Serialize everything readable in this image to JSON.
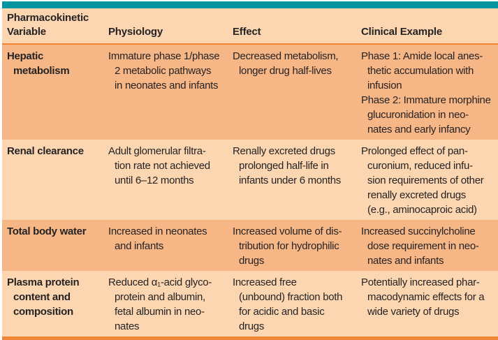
{
  "colors": {
    "teal": "#00949e",
    "row_light": "#fcd6b1",
    "row_dark": "#f6b685",
    "rule_orange": "#f08633",
    "text": "#262324"
  },
  "table": {
    "header": [
      "Pharmacokinetic\nVariable",
      "Physiology",
      "Effect",
      "Clinical Example"
    ],
    "rows": [
      {
        "variable": "Hepatic metabolism",
        "physiology": "Immature phase 1/phase\n2 metabolic pathways\nin neonates and infants",
        "effect": "Decreased metabolism,\nlonger drug half-lives",
        "clinical": [
          "Phase 1: Amide local anes-\nthetic accumulation with\ninfusion",
          "Phase 2: Immature morphine\nglucuronidation in neo-\nnates and early infancy"
        ]
      },
      {
        "variable": "Renal clearance",
        "physiology": "Adult glomerular filtra-\ntion rate not achieved\nuntil 6–12 months",
        "effect": "Renally excreted drugs\nprolonged half-life in\ninfants under 6 months",
        "clinical": [
          "Prolonged effect of pan-\ncuronium, reduced infu-\nsion requirements of other\nrenally excreted drugs\n(e.g., aminocaproic acid)"
        ]
      },
      {
        "variable": "Total body water",
        "physiology": "Increased in neonates\nand infants",
        "effect": "Increased volume of dis-\ntribution for hydrophilic\ndrugs",
        "clinical": [
          "Increased succinylcholine\ndose requirement in neo-\nnates and infants"
        ]
      },
      {
        "variable": "Plasma protein\ncontent and\ncomposition",
        "physiology": "Reduced α₁-acid glyco-\nprotein and albumin,\nfetal albumin in neo-\nnates",
        "effect": "Increased free\n(unbound) fraction both\nfor acidic and basic\ndrugs",
        "clinical": [
          "Potentially increased phar-\nmacodynamic effects for a\nwide variety of drugs"
        ]
      }
    ]
  }
}
